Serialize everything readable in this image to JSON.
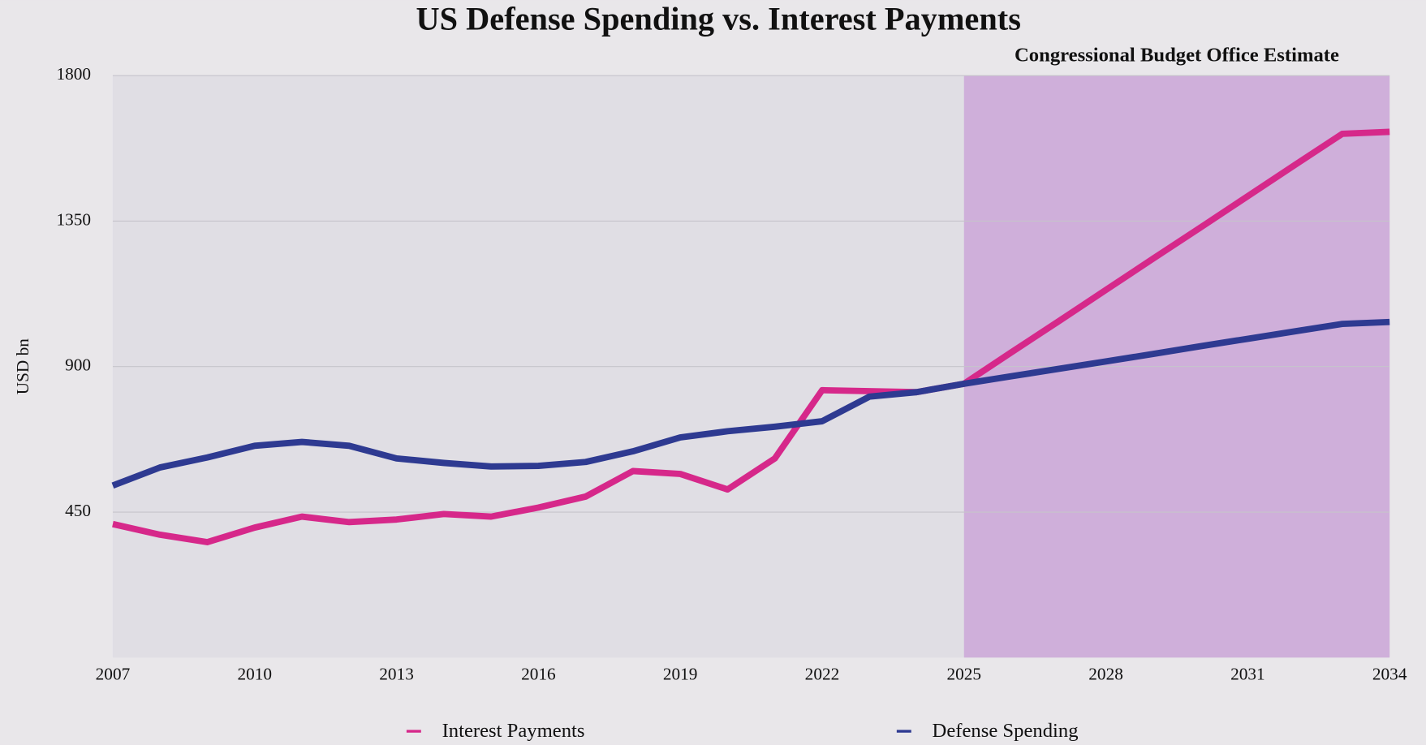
{
  "chart_data": {
    "type": "line",
    "title": "US Defense Spending vs. Interest Payments",
    "annotation": "Congressional Budget Office Estimate",
    "shaded_region": [
      2025,
      2034
    ],
    "y_label": "USD bn",
    "x": [
      2007,
      2008,
      2009,
      2010,
      2011,
      2012,
      2013,
      2014,
      2015,
      2016,
      2017,
      2018,
      2019,
      2020,
      2021,
      2022,
      2023,
      2024,
      2025,
      2026,
      2027,
      2028,
      2029,
      2030,
      2031,
      2032,
      2033,
      2034
    ],
    "series": [
      {
        "name": "Interest Payments",
        "color": "#d6288a",
        "values": [
          413,
          380,
          357,
          402,
          436,
          419,
          427,
          444,
          436,
          464,
          498,
          577,
          568,
          520,
          616,
          827,
          824,
          821,
          847,
          944,
          1040,
          1137,
          1234,
          1330,
          1427,
          1524,
          1620,
          1626
        ]
      },
      {
        "name": "Defense Spending",
        "color": "#2e3a91",
        "values": [
          532,
          588,
          619,
          655,
          667,
          655,
          616,
          602,
          591,
          593,
          605,
          638,
          681,
          700,
          714,
          731,
          807,
          821,
          847,
          870,
          893,
          916,
          939,
          963,
          986,
          1009,
          1032,
          1038
        ]
      }
    ],
    "xlim": [
      2007,
      2034
    ],
    "xticks": [
      2007,
      2010,
      2013,
      2016,
      2019,
      2022,
      2025,
      2028,
      2031,
      2034
    ],
    "ylim": [
      0,
      1800
    ],
    "yticks": [
      450,
      900,
      1350,
      1800
    ],
    "grid": true
  }
}
